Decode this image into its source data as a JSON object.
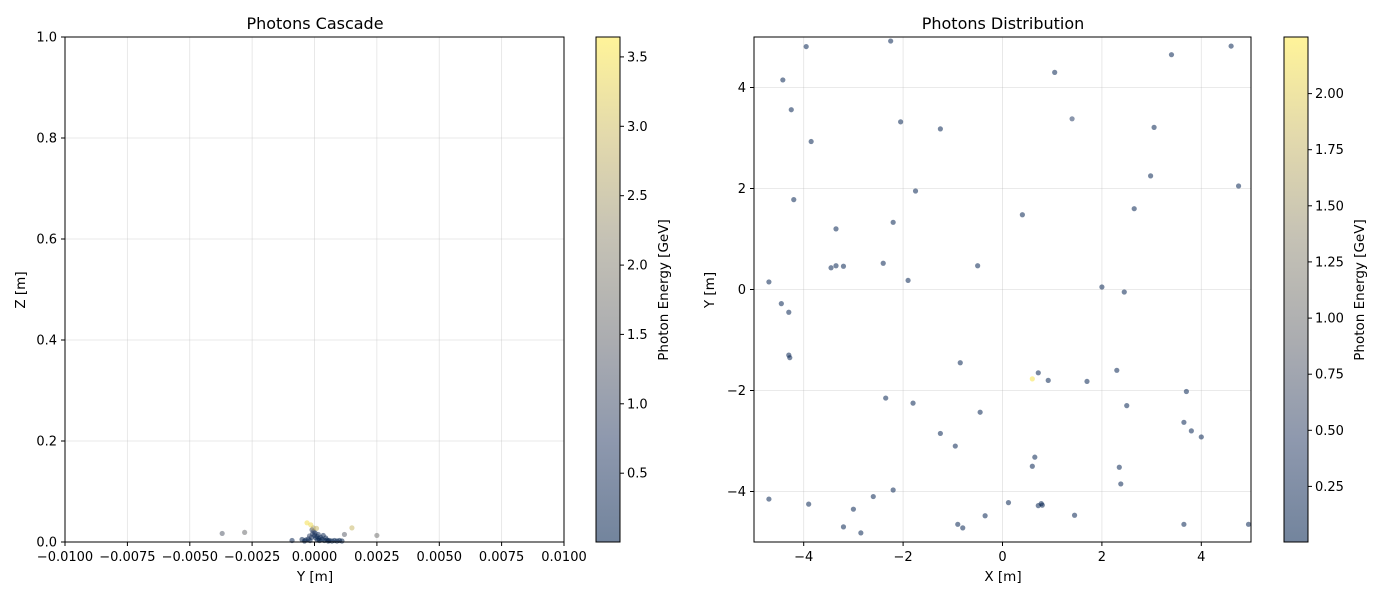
{
  "chart_data": [
    {
      "type": "scatter",
      "title": "Photons Cascade",
      "xlabel": "Y [m]",
      "ylabel": "Z [m]",
      "xlim": [
        -0.01,
        0.01
      ],
      "ylim": [
        0,
        1.0
      ],
      "xticks": [
        "−0.0100",
        "−0.0075",
        "−0.0050",
        "−0.0025",
        "0.0000",
        "0.0025",
        "0.0050",
        "0.0075",
        "0.0100"
      ],
      "yticks": [
        "0.0",
        "0.2",
        "0.4",
        "0.6",
        "0.8",
        "1.0"
      ],
      "grid": true,
      "colorbar": {
        "label": "Photon Energy [GeV]",
        "range": [
          0.02,
          3.66
        ],
        "ticks": [
          "0.5",
          "1.0",
          "1.5",
          "2.0",
          "2.5",
          "3.0",
          "3.5"
        ],
        "colormap": "cividis"
      },
      "points": [
        {
          "x": -0.0037,
          "y": 0.017,
          "energy": 1.3
        },
        {
          "x": -0.0028,
          "y": 0.019,
          "energy": 1.6
        },
        {
          "x": -0.0009,
          "y": 0.003,
          "energy": 0.3
        },
        {
          "x": -0.0005,
          "y": 0.005,
          "energy": 0.2
        },
        {
          "x": -0.0004,
          "y": 0.002,
          "energy": 0.1
        },
        {
          "x": -0.00035,
          "y": 0.004,
          "energy": 0.1
        },
        {
          "x": -0.0003,
          "y": 0.038,
          "energy": 3.5
        },
        {
          "x": -0.00025,
          "y": 0.006,
          "energy": 0.2
        },
        {
          "x": -0.0002,
          "y": 0.012,
          "energy": 0.8
        },
        {
          "x": -0.00018,
          "y": 0.003,
          "energy": 0.1
        },
        {
          "x": -0.00015,
          "y": 0.034,
          "energy": 3.4
        },
        {
          "x": -0.00012,
          "y": 0.009,
          "energy": 0.3
        },
        {
          "x": -0.0001,
          "y": 0.024,
          "energy": 0.9
        },
        {
          "x": -8e-05,
          "y": 0.016,
          "energy": 0.5
        },
        {
          "x": -5e-05,
          "y": 0.028,
          "energy": 2.6
        },
        {
          "x": -3e-05,
          "y": 0.021,
          "energy": 0.7
        },
        {
          "x": 0.0,
          "y": 0.013,
          "energy": 0.3
        },
        {
          "x": 2e-05,
          "y": 0.018,
          "energy": 0.4
        },
        {
          "x": 5e-05,
          "y": 0.008,
          "energy": 0.2
        },
        {
          "x": 8e-05,
          "y": 0.027,
          "energy": 2.9
        },
        {
          "x": 0.0001,
          "y": 0.011,
          "energy": 0.2
        },
        {
          "x": 0.00012,
          "y": 0.004,
          "energy": 0.1
        },
        {
          "x": 0.00015,
          "y": 0.015,
          "energy": 0.4
        },
        {
          "x": 0.00018,
          "y": 0.007,
          "energy": 0.2
        },
        {
          "x": 0.0002,
          "y": 0.003,
          "energy": 0.1
        },
        {
          "x": 0.00025,
          "y": 0.009,
          "energy": 0.2
        },
        {
          "x": 0.0003,
          "y": 0.005,
          "energy": 0.1
        },
        {
          "x": 0.00035,
          "y": 0.013,
          "energy": 0.3
        },
        {
          "x": 0.0004,
          "y": 0.003,
          "energy": 0.1
        },
        {
          "x": 0.00045,
          "y": 0.008,
          "energy": 0.2
        },
        {
          "x": 0.0005,
          "y": 0.004,
          "energy": 0.1
        },
        {
          "x": 0.00055,
          "y": 0.002,
          "energy": 0.1
        },
        {
          "x": 0.0006,
          "y": 0.003,
          "energy": 0.1
        },
        {
          "x": 0.0007,
          "y": 0.002,
          "energy": 0.1
        },
        {
          "x": 0.0008,
          "y": 0.003,
          "energy": 0.1
        },
        {
          "x": 0.0009,
          "y": 0.002,
          "energy": 0.1
        },
        {
          "x": 0.001,
          "y": 0.003,
          "energy": 0.1
        },
        {
          "x": 0.0011,
          "y": 0.002,
          "energy": 0.1
        },
        {
          "x": 0.0012,
          "y": 0.015,
          "energy": 1.4
        },
        {
          "x": 0.0015,
          "y": 0.028,
          "energy": 2.9
        },
        {
          "x": 0.0025,
          "y": 0.013,
          "energy": 1.7
        }
      ]
    },
    {
      "type": "scatter",
      "title": "Photons Distribution",
      "xlabel": "X [m]",
      "ylabel": "Y [m]",
      "xlim": [
        -5,
        5
      ],
      "ylim": [
        -5,
        5
      ],
      "xticks": [
        "−4",
        "−2",
        "0",
        "2",
        "4"
      ],
      "yticks": [
        "−4",
        "−2",
        "0",
        "2",
        "4"
      ],
      "grid": true,
      "colorbar": {
        "label": "Photon Energy [GeV]",
        "range": [
          0.01,
          2.26
        ],
        "ticks": [
          "0.25",
          "0.50",
          "0.75",
          "1.00",
          "1.25",
          "1.50",
          "1.75",
          "2.00"
        ],
        "colormap": "cividis"
      },
      "points": [
        {
          "x": -3.95,
          "y": 4.81,
          "energy": 0.1
        },
        {
          "x": -2.25,
          "y": 4.92,
          "energy": 0.1
        },
        {
          "x": -4.42,
          "y": 4.15,
          "energy": 0.1
        },
        {
          "x": -4.25,
          "y": 3.56,
          "energy": 0.1
        },
        {
          "x": -3.85,
          "y": 2.93,
          "energy": 0.1
        },
        {
          "x": -2.05,
          "y": 3.32,
          "energy": 0.1
        },
        {
          "x": -1.25,
          "y": 3.18,
          "energy": 0.1
        },
        {
          "x": 1.05,
          "y": 4.3,
          "energy": 0.1
        },
        {
          "x": 1.4,
          "y": 3.38,
          "energy": 0.4
        },
        {
          "x": 3.4,
          "y": 4.65,
          "energy": 0.1
        },
        {
          "x": 4.6,
          "y": 4.82,
          "energy": 0.1
        },
        {
          "x": 3.05,
          "y": 3.21,
          "energy": 0.1
        },
        {
          "x": 2.98,
          "y": 2.25,
          "energy": 0.1
        },
        {
          "x": 4.75,
          "y": 2.05,
          "energy": 0.1
        },
        {
          "x": -1.75,
          "y": 1.95,
          "energy": 0.1
        },
        {
          "x": -4.2,
          "y": 1.78,
          "energy": 0.1
        },
        {
          "x": -2.2,
          "y": 1.33,
          "energy": 0.1
        },
        {
          "x": -3.35,
          "y": 1.2,
          "energy": 0.1
        },
        {
          "x": 0.4,
          "y": 1.48,
          "energy": 0.1
        },
        {
          "x": 2.65,
          "y": 1.6,
          "energy": 0.1
        },
        {
          "x": -4.7,
          "y": 0.15,
          "energy": 0.1
        },
        {
          "x": -3.45,
          "y": 0.43,
          "energy": 0.1
        },
        {
          "x": -3.35,
          "y": 0.47,
          "energy": 0.1
        },
        {
          "x": -3.2,
          "y": 0.46,
          "energy": 0.1
        },
        {
          "x": -2.4,
          "y": 0.52,
          "energy": 0.1
        },
        {
          "x": -1.9,
          "y": 0.18,
          "energy": 0.1
        },
        {
          "x": -0.5,
          "y": 0.47,
          "energy": 0.1
        },
        {
          "x": 2.0,
          "y": 0.05,
          "energy": 0.1
        },
        {
          "x": 2.45,
          "y": -0.05,
          "energy": 0.1
        },
        {
          "x": -4.45,
          "y": -0.28,
          "energy": 0.1
        },
        {
          "x": -4.3,
          "y": -0.45,
          "energy": 0.1
        },
        {
          "x": -4.3,
          "y": -1.3,
          "energy": 0.1
        },
        {
          "x": -4.28,
          "y": -1.35,
          "energy": 0.1
        },
        {
          "x": -0.85,
          "y": -1.45,
          "energy": 0.1
        },
        {
          "x": 0.6,
          "y": -1.77,
          "energy": 2.2
        },
        {
          "x": 0.72,
          "y": -1.65,
          "energy": 0.1
        },
        {
          "x": 0.92,
          "y": -1.8,
          "energy": 0.1
        },
        {
          "x": 1.7,
          "y": -1.82,
          "energy": 0.1
        },
        {
          "x": 2.3,
          "y": -1.6,
          "energy": 0.1
        },
        {
          "x": 3.7,
          "y": -2.02,
          "energy": 0.1
        },
        {
          "x": -2.35,
          "y": -2.15,
          "energy": 0.1
        },
        {
          "x": -1.8,
          "y": -2.25,
          "energy": 0.1
        },
        {
          "x": -0.45,
          "y": -2.43,
          "energy": 0.1
        },
        {
          "x": 2.5,
          "y": -2.3,
          "energy": 0.1
        },
        {
          "x": 3.65,
          "y": -2.63,
          "energy": 0.1
        },
        {
          "x": 3.8,
          "y": -2.8,
          "energy": 0.1
        },
        {
          "x": 4.0,
          "y": -2.92,
          "energy": 0.1
        },
        {
          "x": -1.25,
          "y": -2.85,
          "energy": 0.1
        },
        {
          "x": -0.95,
          "y": -3.1,
          "energy": 0.1
        },
        {
          "x": 0.65,
          "y": -3.32,
          "energy": 0.1
        },
        {
          "x": 0.6,
          "y": -3.5,
          "energy": 0.1
        },
        {
          "x": 2.35,
          "y": -3.52,
          "energy": 0.1
        },
        {
          "x": 2.38,
          "y": -3.85,
          "energy": 0.1
        },
        {
          "x": -4.7,
          "y": -4.15,
          "energy": 0.1
        },
        {
          "x": -3.9,
          "y": -4.25,
          "energy": 0.1
        },
        {
          "x": -2.6,
          "y": -4.1,
          "energy": 0.1
        },
        {
          "x": -2.2,
          "y": -3.97,
          "energy": 0.1
        },
        {
          "x": -3.0,
          "y": -4.35,
          "energy": 0.1
        },
        {
          "x": 0.12,
          "y": -4.22,
          "energy": 0.1
        },
        {
          "x": 0.72,
          "y": -4.28,
          "energy": 0.1
        },
        {
          "x": 0.8,
          "y": -4.27,
          "energy": 0.1
        },
        {
          "x": 0.78,
          "y": -4.24,
          "energy": 0.1
        },
        {
          "x": -0.35,
          "y": -4.48,
          "energy": 0.1
        },
        {
          "x": 1.45,
          "y": -4.47,
          "energy": 0.1
        },
        {
          "x": -3.2,
          "y": -4.7,
          "energy": 0.1
        },
        {
          "x": -2.85,
          "y": -4.82,
          "energy": 0.1
        },
        {
          "x": -0.9,
          "y": -4.65,
          "energy": 0.1
        },
        {
          "x": -0.8,
          "y": -4.72,
          "energy": 0.1
        },
        {
          "x": 3.65,
          "y": -4.65,
          "energy": 0.1
        },
        {
          "x": 4.95,
          "y": -4.65,
          "energy": 0.1
        }
      ]
    }
  ]
}
